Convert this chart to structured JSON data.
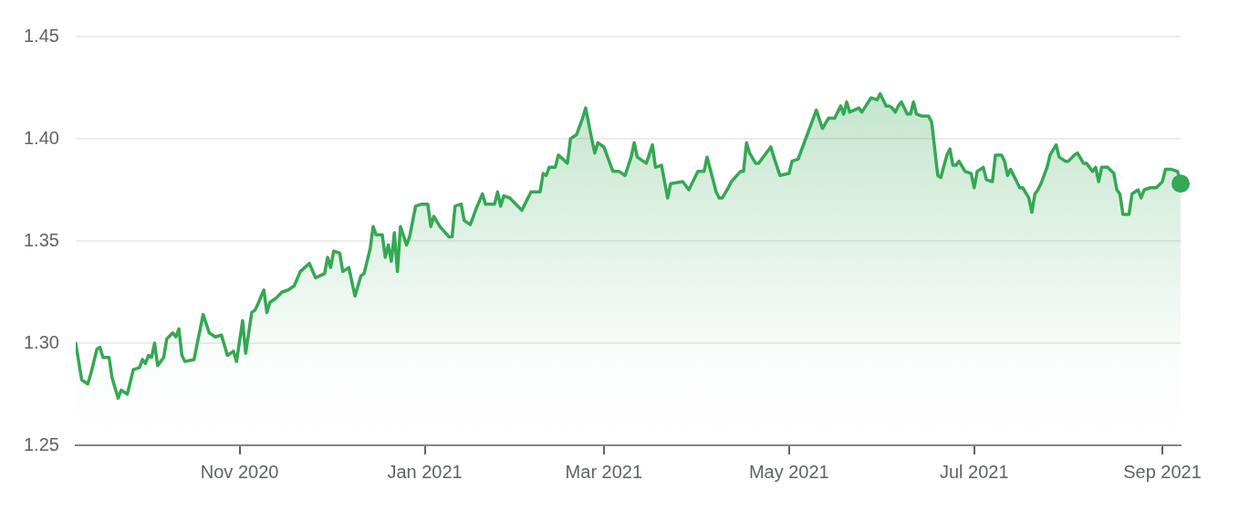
{
  "chart_data": {
    "type": "area",
    "grid": "y",
    "legend": false,
    "marker": "none",
    "line_style": "solid",
    "xlim": [
      "2020-09-08",
      "2021-09-07"
    ],
    "xticks": [
      {
        "value": "2020-11-01",
        "label": "Nov 2020"
      },
      {
        "value": "2021-01-01",
        "label": "Jan 2021"
      },
      {
        "value": "2021-03-01",
        "label": "Mar 2021"
      },
      {
        "value": "2021-05-01",
        "label": "May 2021"
      },
      {
        "value": "2021-07-01",
        "label": "Jul 2021"
      },
      {
        "value": "2021-09-01",
        "label": "Sep 2021"
      }
    ],
    "ylim": [
      1.25,
      1.45
    ],
    "yticks": [
      {
        "value": 1.25,
        "label": "1.25"
      },
      {
        "value": 1.3,
        "label": "1.30"
      },
      {
        "value": 1.35,
        "label": "1.35"
      },
      {
        "value": 1.4,
        "label": "1.40"
      },
      {
        "value": 1.45,
        "label": "1.45"
      }
    ],
    "series": [
      {
        "color": "#34a853",
        "x": [
          "2020-09-08",
          "2020-09-10",
          "2020-09-12",
          "2020-09-13",
          "2020-09-15",
          "2020-09-16",
          "2020-09-17",
          "2020-09-19",
          "2020-09-20",
          "2020-09-22",
          "2020-09-23",
          "2020-09-25",
          "2020-09-27",
          "2020-09-29",
          "2020-09-30",
          "2020-10-01",
          "2020-10-02",
          "2020-10-03",
          "2020-10-04",
          "2020-10-05",
          "2020-10-07",
          "2020-10-08",
          "2020-10-10",
          "2020-10-11",
          "2020-10-12",
          "2020-10-13",
          "2020-10-14",
          "2020-10-17",
          "2020-10-20",
          "2020-10-22",
          "2020-10-24",
          "2020-10-26",
          "2020-10-28",
          "2020-10-30",
          "2020-10-31",
          "2020-11-02",
          "2020-11-03",
          "2020-11-05",
          "2020-11-06",
          "2020-11-07",
          "2020-11-09",
          "2020-11-10",
          "2020-11-11",
          "2020-11-13",
          "2020-11-15",
          "2020-11-17",
          "2020-11-19",
          "2020-11-21",
          "2020-11-24",
          "2020-11-26",
          "2020-11-29",
          "2020-11-30",
          "2020-12-01",
          "2020-12-02",
          "2020-12-04",
          "2020-12-05",
          "2020-12-07",
          "2020-12-09",
          "2020-12-11",
          "2020-12-12",
          "2020-12-14",
          "2020-12-15",
          "2020-12-16",
          "2020-12-18",
          "2020-12-19",
          "2020-12-20",
          "2020-12-21",
          "2020-12-22",
          "2020-12-23",
          "2020-12-24",
          "2020-12-26",
          "2020-12-27",
          "2020-12-29",
          "2020-12-31",
          "2021-01-02",
          "2021-01-03",
          "2021-01-04",
          "2021-01-06",
          "2021-01-09",
          "2021-01-10",
          "2021-01-11",
          "2021-01-13",
          "2021-01-14",
          "2021-01-16",
          "2021-01-18",
          "2021-01-20",
          "2021-01-21",
          "2021-01-24",
          "2021-01-25",
          "2021-01-26",
          "2021-01-27",
          "2021-01-29",
          "2021-02-02",
          "2021-02-05",
          "2021-02-08",
          "2021-02-09",
          "2021-02-10",
          "2021-02-11",
          "2021-02-13",
          "2021-02-14",
          "2021-02-17",
          "2021-02-18",
          "2021-02-20",
          "2021-02-22",
          "2021-02-23",
          "2021-02-25",
          "2021-02-26",
          "2021-02-27",
          "2021-03-01",
          "2021-03-04",
          "2021-03-06",
          "2021-03-08",
          "2021-03-10",
          "2021-03-11",
          "2021-03-12",
          "2021-03-15",
          "2021-03-17",
          "2021-03-18",
          "2021-03-20",
          "2021-03-22",
          "2021-03-23",
          "2021-03-27",
          "2021-03-29",
          "2021-03-31",
          "2021-04-01",
          "2021-04-03",
          "2021-04-04",
          "2021-04-07",
          "2021-04-08",
          "2021-04-09",
          "2021-04-11",
          "2021-04-12",
          "2021-04-15",
          "2021-04-16",
          "2021-04-17",
          "2021-04-18",
          "2021-04-20",
          "2021-04-21",
          "2021-04-23",
          "2021-04-25",
          "2021-04-26",
          "2021-04-28",
          "2021-05-01",
          "2021-05-02",
          "2021-05-04",
          "2021-05-06",
          "2021-05-08",
          "2021-05-10",
          "2021-05-12",
          "2021-05-14",
          "2021-05-16",
          "2021-05-18",
          "2021-05-19",
          "2021-05-20",
          "2021-05-21",
          "2021-05-24",
          "2021-05-25",
          "2021-05-28",
          "2021-05-30",
          "2021-05-31",
          "2021-06-02",
          "2021-06-03",
          "2021-06-04",
          "2021-06-05",
          "2021-06-06",
          "2021-06-07",
          "2021-06-09",
          "2021-06-10",
          "2021-06-11",
          "2021-06-12",
          "2021-06-14",
          "2021-06-16",
          "2021-06-17",
          "2021-06-18",
          "2021-06-19",
          "2021-06-20",
          "2021-06-22",
          "2021-06-23",
          "2021-06-24",
          "2021-06-25",
          "2021-06-26",
          "2021-06-28",
          "2021-06-30",
          "2021-07-01",
          "2021-07-02",
          "2021-07-04",
          "2021-07-05",
          "2021-07-07",
          "2021-07-08",
          "2021-07-10",
          "2021-07-11",
          "2021-07-12",
          "2021-07-13",
          "2021-07-15",
          "2021-07-16",
          "2021-07-17",
          "2021-07-19",
          "2021-07-20",
          "2021-07-21",
          "2021-07-22",
          "2021-07-23",
          "2021-07-25",
          "2021-07-26",
          "2021-07-28",
          "2021-07-29",
          "2021-07-31",
          "2021-08-01",
          "2021-08-03",
          "2021-08-04",
          "2021-08-06",
          "2021-08-07",
          "2021-08-09",
          "2021-08-10",
          "2021-08-11",
          "2021-08-12",
          "2021-08-14",
          "2021-08-16",
          "2021-08-17",
          "2021-08-18",
          "2021-08-19",
          "2021-08-21",
          "2021-08-22",
          "2021-08-24",
          "2021-08-25",
          "2021-08-26",
          "2021-08-28",
          "2021-08-30",
          "2021-09-01",
          "2021-09-02",
          "2021-09-04",
          "2021-09-06",
          "2021-09-07"
        ],
        "values": [
          1.3,
          1.282,
          1.28,
          1.285,
          1.297,
          1.298,
          1.293,
          1.293,
          1.283,
          1.273,
          1.277,
          1.275,
          1.287,
          1.288,
          1.292,
          1.29,
          1.294,
          1.293,
          1.3,
          1.289,
          1.293,
          1.302,
          1.305,
          1.303,
          1.307,
          1.294,
          1.291,
          1.292,
          1.314,
          1.305,
          1.303,
          1.304,
          1.294,
          1.296,
          1.291,
          1.311,
          1.295,
          1.315,
          1.316,
          1.319,
          1.326,
          1.315,
          1.32,
          1.322,
          1.325,
          1.326,
          1.328,
          1.335,
          1.339,
          1.332,
          1.334,
          1.342,
          1.337,
          1.345,
          1.344,
          1.335,
          1.337,
          1.323,
          1.333,
          1.334,
          1.346,
          1.357,
          1.353,
          1.353,
          1.342,
          1.348,
          1.34,
          1.354,
          1.335,
          1.357,
          1.348,
          1.352,
          1.367,
          1.368,
          1.368,
          1.357,
          1.362,
          1.357,
          1.352,
          1.352,
          1.367,
          1.368,
          1.36,
          1.358,
          1.366,
          1.373,
          1.368,
          1.368,
          1.374,
          1.367,
          1.372,
          1.371,
          1.365,
          1.374,
          1.374,
          1.383,
          1.382,
          1.386,
          1.386,
          1.392,
          1.388,
          1.4,
          1.402,
          1.41,
          1.415,
          1.4,
          1.393,
          1.398,
          1.396,
          1.384,
          1.384,
          1.382,
          1.391,
          1.398,
          1.391,
          1.388,
          1.397,
          1.386,
          1.387,
          1.371,
          1.378,
          1.379,
          1.375,
          1.381,
          1.384,
          1.384,
          1.391,
          1.374,
          1.371,
          1.371,
          1.376,
          1.379,
          1.384,
          1.384,
          1.398,
          1.393,
          1.388,
          1.388,
          1.392,
          1.396,
          1.391,
          1.382,
          1.383,
          1.389,
          1.39,
          1.398,
          1.406,
          1.414,
          1.405,
          1.41,
          1.41,
          1.416,
          1.412,
          1.418,
          1.413,
          1.415,
          1.413,
          1.42,
          1.419,
          1.422,
          1.416,
          1.416,
          1.415,
          1.413,
          1.416,
          1.418,
          1.412,
          1.412,
          1.418,
          1.412,
          1.411,
          1.411,
          1.408,
          1.395,
          1.382,
          1.381,
          1.392,
          1.395,
          1.387,
          1.387,
          1.389,
          1.384,
          1.383,
          1.376,
          1.384,
          1.386,
          1.38,
          1.379,
          1.392,
          1.392,
          1.389,
          1.382,
          1.385,
          1.379,
          1.376,
          1.376,
          1.371,
          1.364,
          1.373,
          1.375,
          1.378,
          1.386,
          1.392,
          1.397,
          1.391,
          1.389,
          1.389,
          1.392,
          1.393,
          1.388,
          1.388,
          1.384,
          1.386,
          1.379,
          1.386,
          1.386,
          1.383,
          1.375,
          1.373,
          1.363,
          1.363,
          1.373,
          1.375,
          1.371,
          1.375,
          1.376,
          1.376,
          1.379,
          1.385,
          1.385,
          1.384,
          1.378
        ]
      },
      {
        "type": "scatter",
        "color": "#34a853",
        "marker": "circle",
        "x": [
          "2021-09-07"
        ],
        "values": [
          1.378
        ]
      }
    ]
  }
}
